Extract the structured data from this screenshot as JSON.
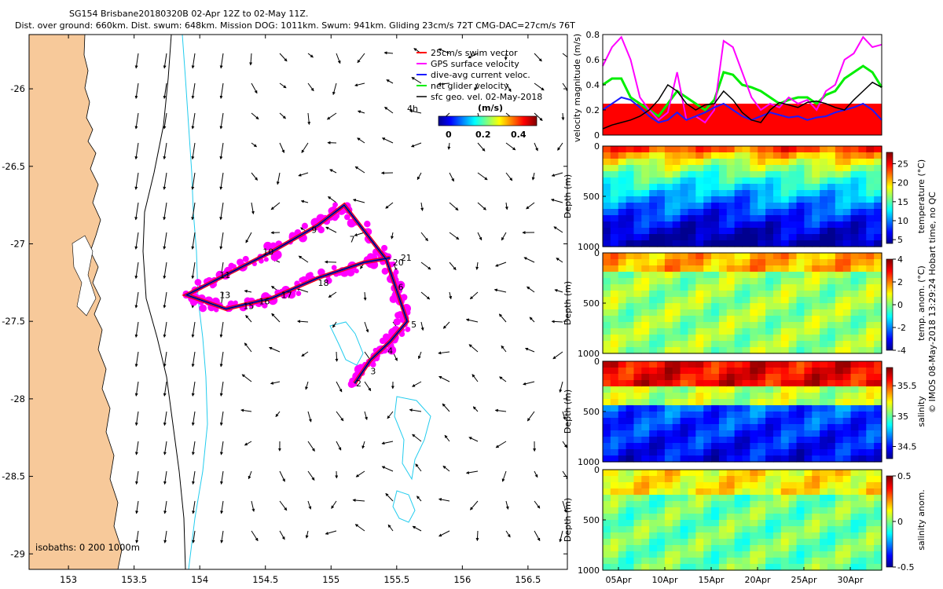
{
  "header": {
    "title": "SG154 Brisbane20180320B 02-Apr 12Z to 02-May 11Z.",
    "subtitle": "Dist. over ground: 660km. Dist. swum: 648km. Mission DOG: 1011km. Swum: 941km. Gliding 23cm/s 72T CMG-DAC=27cm/s 76T"
  },
  "side_note": "© IMOS 08-May-2018 13:29:24 Hobart time, no QC",
  "colors": {
    "land": "#f7c99a",
    "track": "#1a1aff",
    "swim": "#ff0000",
    "gps": "#ff00ff",
    "net": "#00ee00",
    "geo": "#000000",
    "isobath_shallow": "#000000",
    "isobath_deep": "#22ccee"
  },
  "chart_data": [
    {
      "type": "map",
      "xlim": [
        152.7,
        156.8
      ],
      "ylim": [
        -29.1,
        -25.65
      ],
      "xticks": [
        "153",
        "153.5",
        "154",
        "154.5",
        "155",
        "155.5",
        "156",
        "156.5"
      ],
      "yticks": [
        "-26",
        "-26.5",
        "-27",
        "-27.5",
        "-28",
        "-28.5",
        "-29"
      ],
      "legend": {
        "entries": [
          "25cm/s swim vector",
          "GPS surface velocity",
          "dive-avg current veloc.",
          "net glider velocity",
          "sfc geo. vel. 02-May-2018"
        ],
        "scale_label": "4h",
        "colorbar_label": "(m/s)",
        "colorbar_ticks": [
          "0",
          "0.2",
          "0.4"
        ],
        "position": "top-right"
      },
      "isobath_label": "isobaths: 0   200  1000m",
      "track": [
        [
          155.18,
          -27.9
        ],
        [
          155.3,
          -27.75
        ],
        [
          155.45,
          -27.63
        ],
        [
          155.58,
          -27.5
        ],
        [
          155.5,
          -27.3
        ],
        [
          155.42,
          -27.1
        ],
        [
          155.1,
          -26.75
        ],
        [
          154.9,
          -26.88
        ],
        [
          154.55,
          -27.05
        ],
        [
          154.2,
          -27.2
        ],
        [
          153.9,
          -27.33
        ],
        [
          154.2,
          -27.42
        ],
        [
          154.55,
          -27.35
        ],
        [
          154.9,
          -27.22
        ],
        [
          155.25,
          -27.12
        ],
        [
          155.45,
          -27.09
        ]
      ],
      "track_labels": [
        {
          "text": "2",
          "lon": 155.19,
          "lat": -27.9
        },
        {
          "text": "3",
          "lon": 155.3,
          "lat": -27.82
        },
        {
          "text": "4",
          "lon": 155.43,
          "lat": -27.69
        },
        {
          "text": "5",
          "lon": 155.61,
          "lat": -27.52
        },
        {
          "text": "6",
          "lon": 155.51,
          "lat": -27.28
        },
        {
          "text": "7",
          "lon": 155.14,
          "lat": -26.97
        },
        {
          "text": "9",
          "lon": 154.85,
          "lat": -26.91
        },
        {
          "text": "10",
          "lon": 154.48,
          "lat": -27.05
        },
        {
          "text": "11",
          "lon": 154.15,
          "lat": -27.2
        },
        {
          "text": "13",
          "lon": 154.15,
          "lat": -27.33
        },
        {
          "text": "15",
          "lon": 154.33,
          "lat": -27.4
        },
        {
          "text": "16",
          "lon": 154.45,
          "lat": -27.37
        },
        {
          "text": "17",
          "lon": 154.62,
          "lat": -27.33
        },
        {
          "text": "18",
          "lon": 154.9,
          "lat": -27.25
        },
        {
          "text": "20",
          "lon": 155.47,
          "lat": -27.12
        },
        {
          "text": "21",
          "lon": 155.53,
          "lat": -27.09
        }
      ]
    },
    {
      "type": "line",
      "ylabel": "velocity magnitude (m/s)",
      "ylim": [
        0,
        0.8
      ],
      "yticks": [
        "0",
        "0.2",
        "0.4",
        "0.6",
        "0.8"
      ],
      "x": [
        0,
        1,
        2,
        3,
        4,
        5,
        6,
        7,
        8,
        9,
        10,
        11,
        12,
        13,
        14,
        15,
        16,
        17,
        18,
        19,
        20,
        21,
        22,
        23,
        24,
        25,
        26,
        27,
        28,
        29,
        30
      ],
      "series": [
        {
          "name": "swim",
          "values": [
            0.25,
            0.25,
            0.25,
            0.25,
            0.25,
            0.25,
            0.25,
            0.25,
            0.25,
            0.25,
            0.25,
            0.25,
            0.25,
            0.25,
            0.25,
            0.25,
            0.25,
            0.25,
            0.25,
            0.25,
            0.25,
            0.25,
            0.25,
            0.25,
            0.25,
            0.25,
            0.25,
            0.25,
            0.25,
            0.25,
            0.25
          ]
        },
        {
          "name": "GPS",
          "values": [
            0.55,
            0.7,
            0.78,
            0.6,
            0.3,
            0.2,
            0.12,
            0.18,
            0.5,
            0.12,
            0.15,
            0.1,
            0.2,
            0.75,
            0.7,
            0.5,
            0.3,
            0.2,
            0.25,
            0.22,
            0.3,
            0.25,
            0.28,
            0.2,
            0.35,
            0.4,
            0.6,
            0.65,
            0.78,
            0.7,
            0.72
          ]
        },
        {
          "name": "dive-avg",
          "values": [
            0.2,
            0.25,
            0.3,
            0.28,
            0.22,
            0.15,
            0.1,
            0.12,
            0.18,
            0.12,
            0.15,
            0.18,
            0.22,
            0.25,
            0.2,
            0.15,
            0.12,
            0.15,
            0.18,
            0.16,
            0.14,
            0.15,
            0.12,
            0.14,
            0.15,
            0.18,
            0.2,
            0.22,
            0.25,
            0.2,
            0.12
          ]
        },
        {
          "name": "net",
          "values": [
            0.4,
            0.45,
            0.45,
            0.3,
            0.25,
            0.2,
            0.15,
            0.25,
            0.35,
            0.3,
            0.25,
            0.2,
            0.28,
            0.5,
            0.48,
            0.4,
            0.38,
            0.35,
            0.3,
            0.25,
            0.28,
            0.3,
            0.3,
            0.25,
            0.32,
            0.35,
            0.45,
            0.5,
            0.55,
            0.5,
            0.38
          ]
        },
        {
          "name": "geo",
          "values": [
            0.05,
            0.08,
            0.1,
            0.12,
            0.15,
            0.2,
            0.28,
            0.4,
            0.35,
            0.25,
            0.2,
            0.24,
            0.25,
            0.35,
            0.28,
            0.18,
            0.12,
            0.1,
            0.2,
            0.26,
            0.24,
            0.22,
            0.26,
            0.27,
            0.25,
            0.22,
            0.2,
            0.28,
            0.35,
            0.42,
            0.38
          ]
        }
      ]
    },
    {
      "type": "heatmap",
      "ylabel": "Depth (m)",
      "yticks": [
        "0",
        "500",
        "1000"
      ],
      "cbar_label": "temperature (°C)",
      "cbar_ticks": [
        "5",
        "10",
        "15",
        "20",
        "25"
      ],
      "vmin": 4,
      "vmax": 28
    },
    {
      "type": "heatmap",
      "ylabel": "Depth (m)",
      "yticks": [
        "0",
        "500",
        "1000"
      ],
      "cbar_label": "temp. anom. (°C)",
      "cbar_ticks": [
        "-4",
        "-2",
        "0",
        "2",
        "4"
      ],
      "vmin": -4,
      "vmax": 4
    },
    {
      "type": "heatmap",
      "ylabel": "Depth (m)",
      "yticks": [
        "0",
        "500",
        "1000"
      ],
      "cbar_label": "salinity",
      "cbar_ticks": [
        "34.5",
        "35",
        "35.5"
      ],
      "vmin": 34.3,
      "vmax": 35.8
    },
    {
      "type": "heatmap",
      "ylabel": "Depth (m)",
      "yticks": [
        "0",
        "500",
        "1000"
      ],
      "cbar_label": "salinity anom.",
      "cbar_ticks": [
        "-0.5",
        "0",
        "0.5"
      ],
      "vmin": -0.5,
      "vmax": 0.5,
      "xticks": [
        "05Apr",
        "10Apr",
        "15Apr",
        "20Apr",
        "25Apr",
        "30Apr"
      ]
    }
  ]
}
